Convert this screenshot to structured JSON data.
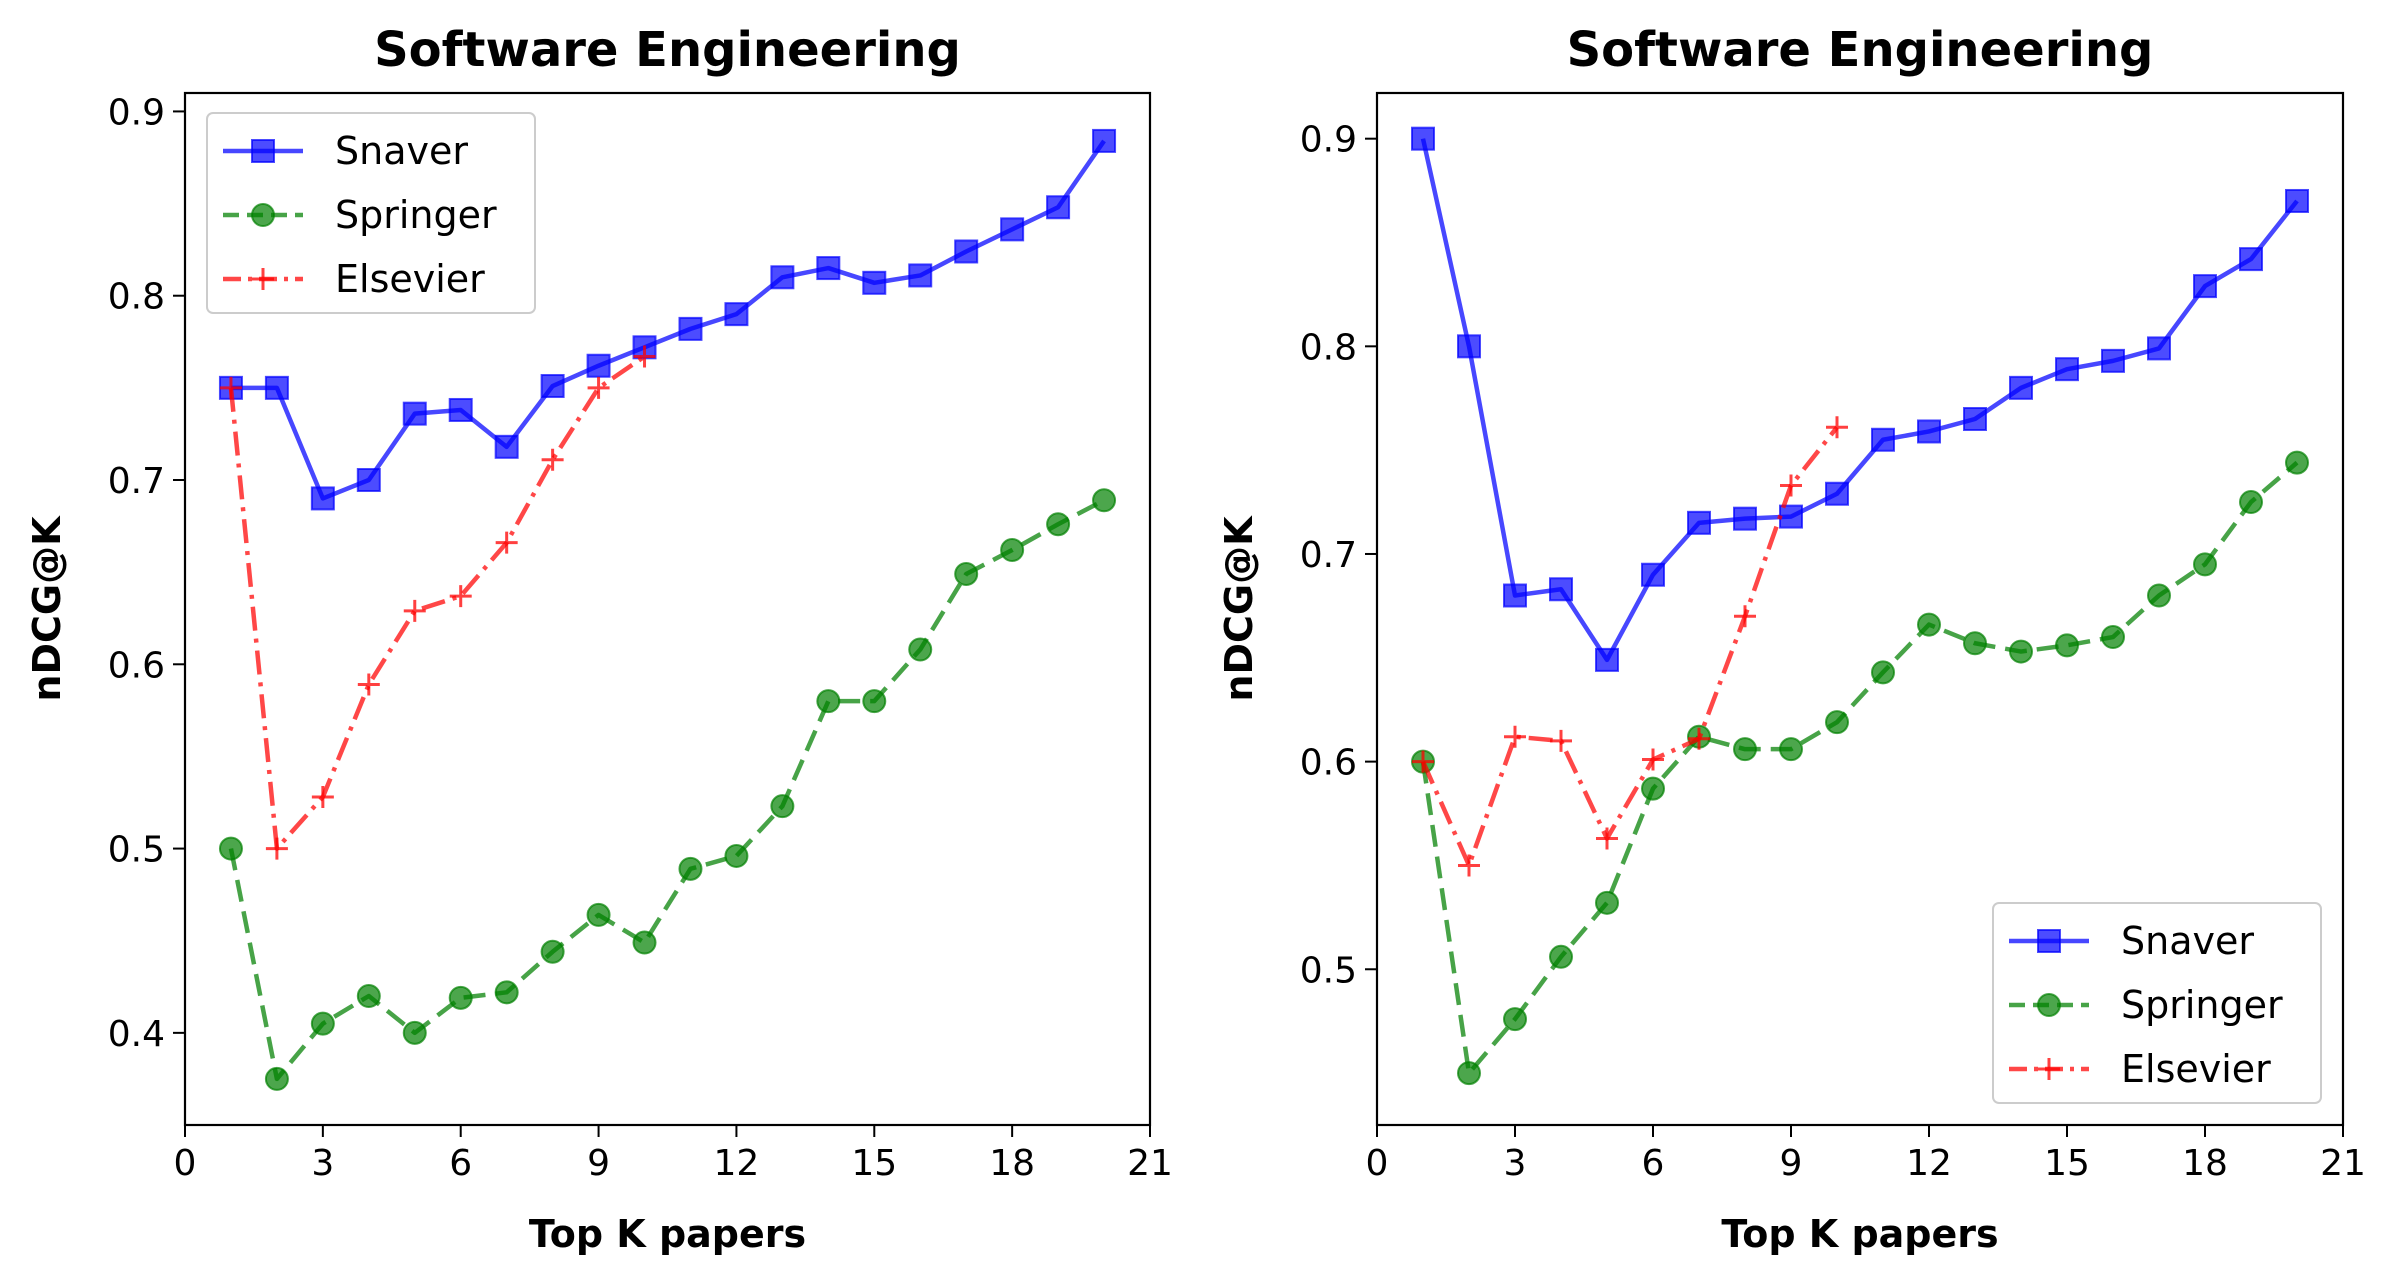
{
  "chart_data": [
    {
      "type": "line",
      "title": "Software Engineering",
      "xlabel": "Top K papers",
      "ylabel": "nDCG@K",
      "xlim": [
        0,
        21
      ],
      "ylim": [
        0.35,
        0.91
      ],
      "xticks": [
        0,
        3,
        6,
        9,
        12,
        15,
        18,
        21
      ],
      "yticks": [
        0.4,
        0.5,
        0.6,
        0.7,
        0.8,
        0.9
      ],
      "legend": "top-left",
      "series": [
        {
          "name": "Snaver",
          "color": "#0000ff",
          "marker": "square",
          "linestyle": "solid",
          "x": [
            1,
            2,
            3,
            4,
            5,
            6,
            7,
            8,
            9,
            10,
            11,
            12,
            13,
            14,
            15,
            16,
            17,
            18,
            19,
            20
          ],
          "y": [
            0.75,
            0.75,
            0.69,
            0.7,
            0.736,
            0.738,
            0.718,
            0.751,
            0.762,
            0.772,
            0.782,
            0.79,
            0.81,
            0.815,
            0.807,
            0.811,
            0.824,
            0.836,
            0.848,
            0.884
          ]
        },
        {
          "name": "Springer",
          "color": "#008000",
          "marker": "circle",
          "linestyle": "dashed",
          "x": [
            1,
            2,
            3,
            4,
            5,
            6,
            7,
            8,
            9,
            10,
            11,
            12,
            13,
            14,
            15,
            16,
            17,
            18,
            19,
            20
          ],
          "y": [
            0.5,
            0.375,
            0.405,
            0.42,
            0.4,
            0.419,
            0.422,
            0.444,
            0.464,
            0.449,
            0.489,
            0.496,
            0.523,
            0.58,
            0.58,
            0.608,
            0.649,
            0.662,
            0.676,
            0.689
          ]
        },
        {
          "name": "Elsevier",
          "color": "#ff0000",
          "marker": "plus",
          "linestyle": "dashdot",
          "x": [
            1,
            2,
            3,
            4,
            5,
            6,
            7,
            8,
            9,
            10
          ],
          "y": [
            0.75,
            0.5,
            0.528,
            0.589,
            0.629,
            0.637,
            0.666,
            0.711,
            0.75,
            0.767
          ]
        }
      ]
    },
    {
      "type": "line",
      "title": "Software Engineering",
      "xlabel": "Top K papers",
      "ylabel": "nDCG@K",
      "xlim": [
        0,
        21
      ],
      "ylim": [
        0.425,
        0.922
      ],
      "xticks": [
        0,
        3,
        6,
        9,
        12,
        15,
        18,
        21
      ],
      "yticks": [
        0.5,
        0.6,
        0.7,
        0.8,
        0.9
      ],
      "legend": "bottom-right",
      "series": [
        {
          "name": "Snaver",
          "color": "#0000ff",
          "marker": "square",
          "linestyle": "solid",
          "x": [
            1,
            2,
            3,
            4,
            5,
            6,
            7,
            8,
            9,
            10,
            11,
            12,
            13,
            14,
            15,
            16,
            17,
            18,
            19,
            20
          ],
          "y": [
            0.9,
            0.8,
            0.68,
            0.683,
            0.649,
            0.69,
            0.715,
            0.717,
            0.718,
            0.729,
            0.755,
            0.759,
            0.765,
            0.78,
            0.789,
            0.793,
            0.799,
            0.829,
            0.842,
            0.87
          ]
        },
        {
          "name": "Springer",
          "color": "#008000",
          "marker": "circle",
          "linestyle": "dashed",
          "x": [
            1,
            2,
            3,
            4,
            5,
            6,
            7,
            8,
            9,
            10,
            11,
            12,
            13,
            14,
            15,
            16,
            17,
            18,
            19,
            20
          ],
          "y": [
            0.6,
            0.45,
            0.476,
            0.506,
            0.532,
            0.587,
            0.612,
            0.606,
            0.606,
            0.619,
            0.643,
            0.666,
            0.657,
            0.653,
            0.656,
            0.66,
            0.68,
            0.695,
            0.725,
            0.744
          ]
        },
        {
          "name": "Elsevier",
          "color": "#ff0000",
          "marker": "plus",
          "linestyle": "dashdot",
          "x": [
            1,
            2,
            3,
            4,
            5,
            6,
            7,
            8,
            9,
            10
          ],
          "y": [
            0.6,
            0.55,
            0.612,
            0.61,
            0.563,
            0.601,
            0.611,
            0.67,
            0.733,
            0.761
          ]
        }
      ]
    }
  ]
}
